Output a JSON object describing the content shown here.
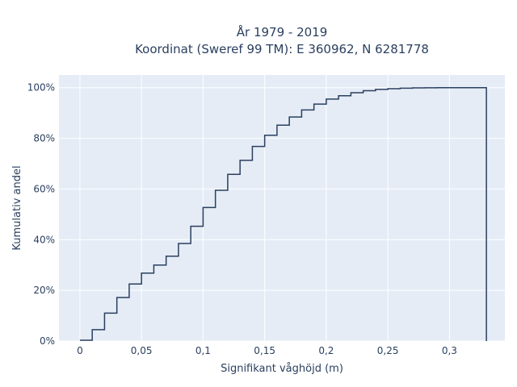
{
  "chart_data": {
    "type": "line",
    "title_line1": "År 1979 - 2019",
    "title_line2": "Koordinat (Sweref 99 TM): E 360962, N 6281778",
    "xlabel": "Signifikant våghöjd (m)",
    "ylabel": "Kumulativ andel",
    "xlim": [
      -0.017,
      0.345
    ],
    "ylim": [
      0,
      1.05
    ],
    "x_ticks": [
      0,
      0.05,
      0.1,
      0.15,
      0.2,
      0.25,
      0.3
    ],
    "x_tick_labels": [
      "0",
      "0,05",
      "0,1",
      "0,15",
      "0,2",
      "0,25",
      "0,3"
    ],
    "y_ticks": [
      0,
      0.2,
      0.4,
      0.6,
      0.8,
      1.0
    ],
    "y_tick_labels": [
      "0%",
      "20%",
      "40%",
      "60%",
      "80%",
      "100%"
    ],
    "grid": true,
    "line_color": "#2a3f5f",
    "plot_bg": "#e5ecf6",
    "series": [
      {
        "x": [
          0,
          0.01,
          0.02,
          0.03,
          0.04,
          0.05,
          0.06,
          0.07,
          0.08,
          0.09,
          0.1,
          0.11,
          0.12,
          0.13,
          0.14,
          0.15,
          0.16,
          0.17,
          0.18,
          0.19,
          0.2,
          0.21,
          0.22,
          0.23,
          0.24,
          0.25,
          0.26,
          0.27,
          0.28,
          0.29,
          0.3,
          0.31,
          0.32,
          0.33
        ],
        "y": [
          0.003,
          0.045,
          0.11,
          0.172,
          0.225,
          0.268,
          0.3,
          0.335,
          0.385,
          0.453,
          0.527,
          0.595,
          0.658,
          0.713,
          0.768,
          0.812,
          0.852,
          0.884,
          0.912,
          0.935,
          0.955,
          0.968,
          0.98,
          0.988,
          0.993,
          0.996,
          0.998,
          0.999,
          0.9995,
          0.9998,
          1.0,
          1.0,
          1.0,
          0.0
        ]
      }
    ]
  }
}
